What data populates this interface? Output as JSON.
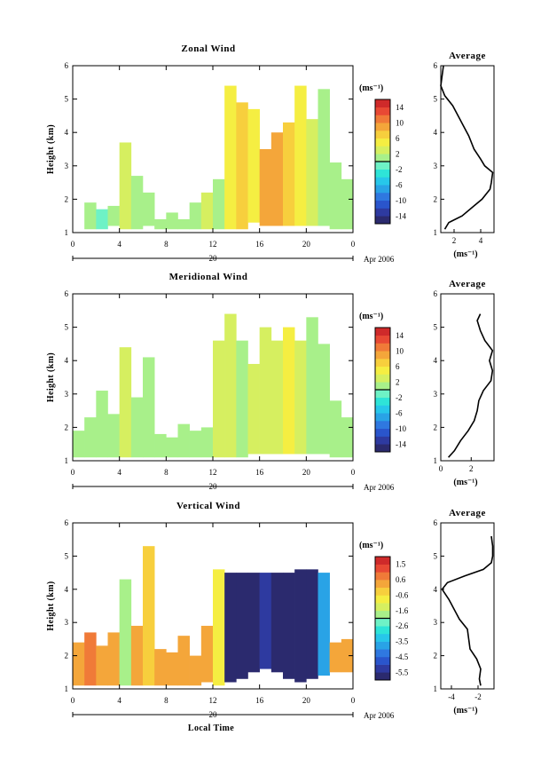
{
  "chart_data": [
    {
      "type": "heatmap",
      "title": "Zonal Wind",
      "ylabel": "Height (km)",
      "ylim": [
        1,
        6
      ],
      "y_ticks": [
        "1",
        "2",
        "3",
        "4",
        "5",
        "6"
      ],
      "xlim": [
        0,
        24
      ],
      "x_ticks": [
        "0",
        "4",
        "8",
        "12",
        "16",
        "20",
        "0"
      ],
      "date_day": "20",
      "date_month_year": "Apr 2006",
      "colorbar_unit": "(ms⁻¹)",
      "colorbar_ticks": [
        "14",
        "10",
        "6",
        "2",
        "-2",
        "-6",
        "-10",
        "-14"
      ],
      "colorbar_range": [
        -16,
        16
      ],
      "cells": [
        [
          1,
          1.1,
          1.9,
          1
        ],
        [
          2,
          1.1,
          1.7,
          -1
        ],
        [
          3,
          1.2,
          1.8,
          1
        ],
        [
          4,
          1.1,
          3.7,
          2
        ],
        [
          5,
          1.1,
          2.7,
          1
        ],
        [
          6,
          1.2,
          2.2,
          0
        ],
        [
          7,
          1.1,
          1.4,
          1
        ],
        [
          8,
          1.1,
          1.6,
          1
        ],
        [
          9,
          1.1,
          1.4,
          0
        ],
        [
          10,
          1.1,
          1.9,
          1
        ],
        [
          11,
          1.1,
          2.2,
          3
        ],
        [
          12,
          1.1,
          2.6,
          1
        ],
        [
          13,
          1.1,
          5.4,
          4
        ],
        [
          14,
          1.1,
          4.9,
          6
        ],
        [
          15,
          1.3,
          4.7,
          5
        ],
        [
          16,
          1.2,
          3.5,
          9
        ],
        [
          17,
          1.2,
          4.0,
          8
        ],
        [
          18,
          1.2,
          4.3,
          6
        ],
        [
          19,
          1.2,
          5.4,
          4
        ],
        [
          20,
          1.2,
          4.4,
          3
        ],
        [
          21,
          1.2,
          5.3,
          1
        ],
        [
          22,
          1.1,
          3.1,
          1
        ],
        [
          23,
          1.1,
          2.6,
          0
        ]
      ],
      "average_profile": {
        "title": "Average",
        "xlabel": "(ms⁻¹)",
        "xlim": [
          1,
          5
        ],
        "x_ticks": [
          "2",
          "4"
        ],
        "height": [
          1.1,
          1.3,
          1.5,
          1.8,
          2.0,
          2.3,
          2.5,
          2.8,
          3.0,
          3.2,
          3.5,
          3.9,
          4.2,
          4.5,
          4.8,
          5.1,
          5.4,
          5.7,
          6.0
        ],
        "value": [
          1.3,
          1.6,
          2.6,
          3.5,
          4.1,
          4.7,
          4.8,
          4.9,
          4.3,
          4.0,
          3.5,
          3.1,
          2.7,
          2.3,
          1.9,
          1.3,
          1.0,
          1.1,
          1.2
        ]
      }
    },
    {
      "type": "heatmap",
      "title": "Meridional Wind",
      "ylabel": "Height (km)",
      "ylim": [
        1,
        6
      ],
      "y_ticks": [
        "1",
        "2",
        "3",
        "4",
        "5",
        "6"
      ],
      "xlim": [
        0,
        24
      ],
      "x_ticks": [
        "0",
        "4",
        "8",
        "12",
        "16",
        "20",
        "0"
      ],
      "date_day": "20",
      "date_month_year": "Apr 2006",
      "colorbar_unit": "(ms⁻¹)",
      "colorbar_ticks": [
        "14",
        "10",
        "6",
        "2",
        "-2",
        "-6",
        "-10",
        "-14"
      ],
      "colorbar_range": [
        -16,
        16
      ],
      "cells": [
        [
          0,
          1.1,
          1.9,
          0
        ],
        [
          1,
          1.1,
          2.3,
          1
        ],
        [
          2,
          1.1,
          3.1,
          0
        ],
        [
          3,
          1.1,
          2.4,
          1
        ],
        [
          4,
          1.1,
          4.4,
          2
        ],
        [
          5,
          1.1,
          2.9,
          1
        ],
        [
          6,
          1.1,
          4.1,
          1
        ],
        [
          7,
          1.1,
          1.8,
          0
        ],
        [
          8,
          1.1,
          1.7,
          1
        ],
        [
          9,
          1.1,
          2.1,
          0
        ],
        [
          10,
          1.1,
          1.9,
          0
        ],
        [
          11,
          1.1,
          2.0,
          1
        ],
        [
          12,
          1.1,
          4.6,
          2
        ],
        [
          13,
          1.1,
          5.4,
          3
        ],
        [
          14,
          1.1,
          4.6,
          1
        ],
        [
          15,
          1.2,
          3.9,
          2
        ],
        [
          16,
          1.2,
          5.0,
          3
        ],
        [
          17,
          1.2,
          4.6,
          2
        ],
        [
          18,
          1.2,
          5.0,
          4
        ],
        [
          19,
          1.2,
          4.6,
          2
        ],
        [
          20,
          1.2,
          5.3,
          1
        ],
        [
          21,
          1.2,
          4.5,
          1
        ],
        [
          22,
          1.1,
          2.8,
          0
        ],
        [
          23,
          1.1,
          2.3,
          0
        ]
      ],
      "average_profile": {
        "title": "Average",
        "xlabel": "(ms⁻¹)",
        "xlim": [
          0,
          3.5
        ],
        "x_ticks": [
          "0",
          "2"
        ],
        "height": [
          1.1,
          1.3,
          1.6,
          1.9,
          2.2,
          2.5,
          2.8,
          3.1,
          3.4,
          3.7,
          4.0,
          4.3,
          4.6,
          4.9,
          5.2,
          5.4
        ],
        "value": [
          0.5,
          0.9,
          1.3,
          1.8,
          2.2,
          2.4,
          2.5,
          2.8,
          3.3,
          3.4,
          3.2,
          3.4,
          2.9,
          2.6,
          2.4,
          2.6
        ]
      }
    },
    {
      "type": "heatmap",
      "title": "Vertical Wind",
      "ylabel": "Height (km)",
      "ylim": [
        1,
        6
      ],
      "y_ticks": [
        "1",
        "2",
        "3",
        "4",
        "5",
        "6"
      ],
      "xlim": [
        0,
        24
      ],
      "x_ticks": [
        "0",
        "4",
        "8",
        "12",
        "16",
        "20",
        "0"
      ],
      "xlabel": "Local Time",
      "date_day": "20",
      "date_month_year": "Apr 2006",
      "colorbar_unit": "(ms⁻¹)",
      "colorbar_ticks": [
        "1.5",
        "0.6",
        "-0.6",
        "-1.6",
        "-2.6",
        "-3.5",
        "-4.5",
        "-5.5"
      ],
      "colorbar_range": [
        -6.5,
        2.0
      ],
      "cells": [
        [
          0,
          1.1,
          2.4,
          0.2
        ],
        [
          1,
          1.1,
          2.7,
          0.5
        ],
        [
          2,
          1.1,
          2.3,
          0.2
        ],
        [
          3,
          1.1,
          2.7,
          0.4
        ],
        [
          4,
          1.1,
          4.3,
          -1.8
        ],
        [
          5,
          1.1,
          2.9,
          0.0
        ],
        [
          6,
          1.1,
          5.3,
          -0.6
        ],
        [
          7,
          1.1,
          2.2,
          0.4
        ],
        [
          8,
          1.1,
          2.1,
          0.3
        ],
        [
          9,
          1.1,
          2.6,
          0.2
        ],
        [
          10,
          1.1,
          2.0,
          0.4
        ],
        [
          11,
          1.2,
          2.9,
          0.3
        ],
        [
          12,
          1.1,
          4.6,
          -0.8
        ],
        [
          13,
          1.2,
          4.5,
          -6.0
        ],
        [
          14,
          1.3,
          4.5,
          -6.0
        ],
        [
          15,
          1.5,
          4.5,
          -6.0
        ],
        [
          16,
          1.6,
          4.5,
          -5.7
        ],
        [
          17,
          1.5,
          4.5,
          -6.0
        ],
        [
          18,
          1.3,
          4.5,
          -6.0
        ],
        [
          19,
          1.2,
          4.6,
          -6.0
        ],
        [
          20,
          1.3,
          4.6,
          -6.0
        ],
        [
          21,
          1.4,
          4.5,
          -4.2
        ],
        [
          22,
          1.5,
          2.4,
          0.2
        ],
        [
          23,
          1.5,
          2.5,
          0.4
        ]
      ],
      "average_profile": {
        "title": "Average",
        "xlabel": "(ms⁻¹)",
        "xlim": [
          -4.8,
          -0.8
        ],
        "x_ticks": [
          "-4",
          "-2"
        ],
        "height": [
          1.1,
          1.3,
          1.6,
          1.9,
          2.2,
          2.5,
          2.8,
          3.1,
          3.4,
          3.7,
          4.0,
          4.2,
          4.4,
          4.6,
          4.8,
          5.0,
          5.3,
          5.6
        ],
        "value": [
          -1.8,
          -1.9,
          -1.8,
          -2.1,
          -2.6,
          -2.7,
          -2.8,
          -3.4,
          -3.8,
          -4.2,
          -4.7,
          -4.3,
          -3.0,
          -1.6,
          -1.0,
          -0.9,
          -0.9,
          -1.0
        ]
      }
    }
  ]
}
